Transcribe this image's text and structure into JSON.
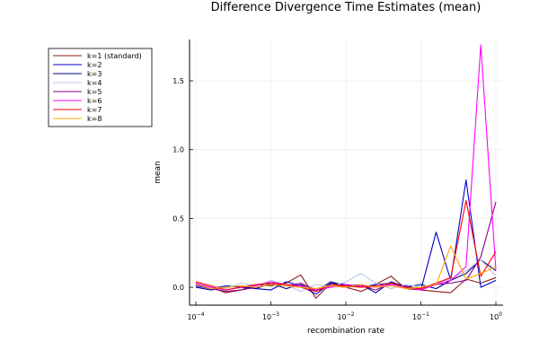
{
  "chart_data": {
    "type": "line",
    "title": "Difference Divergence Time Estimates (mean)",
    "xlabel": "recombination rate",
    "ylabel": "mean",
    "x_scale": "log10",
    "xlim": [
      0.0001,
      1
    ],
    "ylim": [
      -0.13,
      1.8
    ],
    "xticks": [
      0.0001,
      0.001,
      0.01,
      0.1,
      1
    ],
    "xtick_labels": [
      {
        "base": "10",
        "exp": "−4"
      },
      {
        "base": "10",
        "exp": "−3"
      },
      {
        "base": "10",
        "exp": "−2"
      },
      {
        "base": "10",
        "exp": "−1"
      },
      {
        "base": "10",
        "exp": "0"
      }
    ],
    "yticks": [
      0.0,
      0.5,
      1.0,
      1.5
    ],
    "ytick_labels": [
      "0.0",
      "0.5",
      "1.0",
      "1.5"
    ],
    "grid": true,
    "legend_position": "outer top-left",
    "x": [
      0.0001,
      0.00016,
      0.00025,
      0.0004,
      0.00063,
      0.001,
      0.0016,
      0.0025,
      0.004,
      0.0063,
      0.01,
      0.016,
      0.025,
      0.04,
      0.063,
      0.1,
      0.16,
      0.25,
      0.4,
      0.63,
      1.0
    ],
    "series": [
      {
        "name": "k=1 (standard)",
        "color": "#8b1a1a",
        "values": [
          0.03,
          0.0,
          -0.04,
          -0.02,
          0.02,
          0.01,
          0.03,
          0.09,
          -0.08,
          0.03,
          0.0,
          -0.03,
          0.02,
          0.08,
          -0.01,
          -0.02,
          -0.03,
          -0.04,
          0.06,
          0.03,
          0.07
        ]
      },
      {
        "name": "k=2",
        "color": "#0000cd",
        "values": [
          0.01,
          -0.01,
          0.01,
          0.0,
          -0.01,
          -0.02,
          0.04,
          0.01,
          -0.05,
          0.03,
          0.02,
          0.0,
          0.02,
          0.03,
          0.01,
          -0.02,
          0.4,
          0.05,
          0.78,
          0.0,
          0.05
        ]
      },
      {
        "name": "k=3",
        "color": "#00008b",
        "values": [
          0.0,
          -0.02,
          0.0,
          0.01,
          -0.01,
          0.03,
          -0.01,
          0.02,
          -0.03,
          0.04,
          0.01,
          0.02,
          -0.04,
          0.04,
          0.0,
          0.02,
          -0.01,
          0.05,
          0.1,
          0.2,
          0.12
        ]
      },
      {
        "name": "k=4",
        "color": "#b8c5e8",
        "values": [
          0.02,
          0.0,
          -0.01,
          0.03,
          0.01,
          0.05,
          0.02,
          -0.03,
          0.02,
          0.0,
          0.04,
          0.1,
          0.03,
          -0.01,
          0.02,
          0.0,
          0.03,
          0.06,
          0.12,
          0.2,
          0.08
        ]
      },
      {
        "name": "k=5",
        "color": "#8b008b",
        "values": [
          0.02,
          -0.01,
          -0.03,
          -0.02,
          0.0,
          0.02,
          0.01,
          0.03,
          -0.02,
          0.01,
          0.0,
          0.01,
          -0.02,
          0.03,
          0.0,
          -0.01,
          0.02,
          0.03,
          0.05,
          0.22,
          0.62
        ]
      },
      {
        "name": "k=6",
        "color": "#ff00ff",
        "values": [
          0.03,
          0.0,
          -0.02,
          0.0,
          0.01,
          0.04,
          0.02,
          0.01,
          -0.02,
          0.0,
          0.02,
          0.01,
          0.0,
          0.02,
          0.0,
          -0.02,
          0.02,
          0.05,
          0.15,
          1.76,
          0.12
        ]
      },
      {
        "name": "k=7",
        "color": "#ff0000",
        "values": [
          0.04,
          0.01,
          -0.02,
          0.0,
          0.02,
          0.03,
          0.02,
          0.0,
          -0.03,
          0.02,
          0.01,
          0.0,
          0.01,
          0.03,
          0.0,
          -0.01,
          0.03,
          0.07,
          0.63,
          0.08,
          0.26
        ]
      },
      {
        "name": "k=8",
        "color": "#ffa500",
        "values": [
          0.02,
          -0.01,
          0.0,
          0.01,
          0.0,
          0.02,
          0.01,
          0.0,
          -0.01,
          0.01,
          0.0,
          0.02,
          0.0,
          0.01,
          -0.01,
          0.0,
          0.02,
          0.3,
          0.06,
          0.1,
          0.15
        ]
      }
    ]
  }
}
